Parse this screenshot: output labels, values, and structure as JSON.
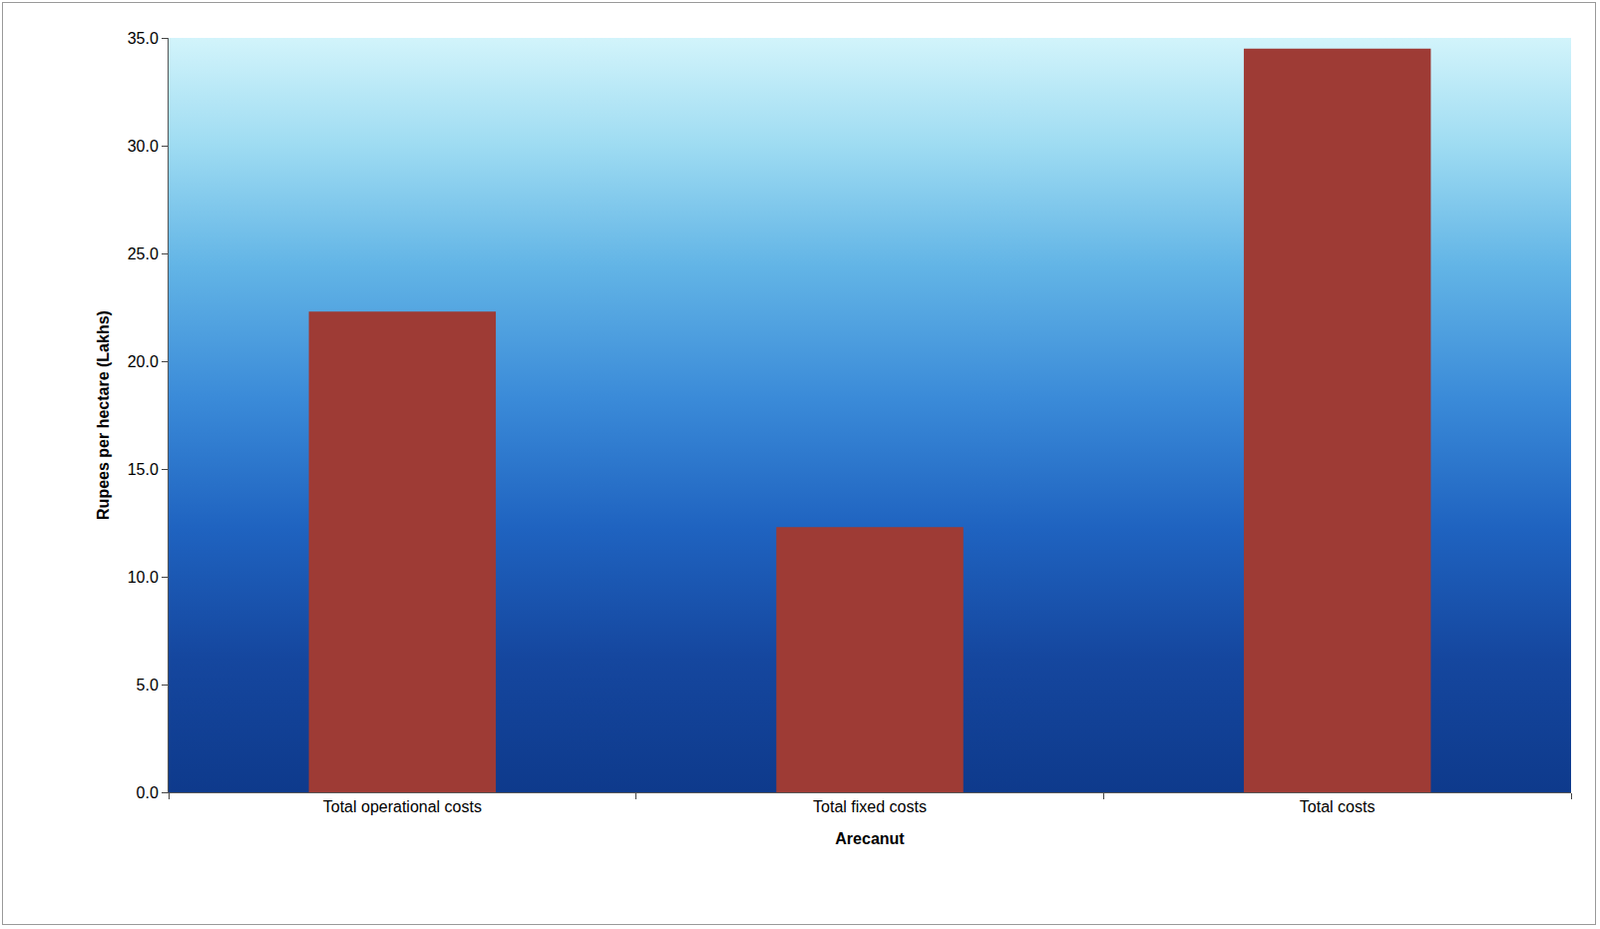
{
  "chart_data": {
    "type": "bar",
    "categories": [
      "Total operational costs",
      "Total fixed costs",
      "Total costs"
    ],
    "values": [
      22.3,
      12.3,
      34.5
    ],
    "color": "#9e3b35",
    "x_label": "Arecanut",
    "y_label": "Rupees per hectare (Lakhs)",
    "ylim": [
      0,
      35
    ],
    "yticks": [
      {
        "value": 0,
        "label": "0.0"
      },
      {
        "value": 5,
        "label": "5.0"
      },
      {
        "value": 10,
        "label": "10.0"
      },
      {
        "value": 15,
        "label": "15.0"
      },
      {
        "value": 20,
        "label": "20.0"
      },
      {
        "value": 25,
        "label": "25.0"
      },
      {
        "value": 30,
        "label": "30.0"
      },
      {
        "value": 35,
        "label": "35.0"
      }
    ],
    "grid": false
  }
}
